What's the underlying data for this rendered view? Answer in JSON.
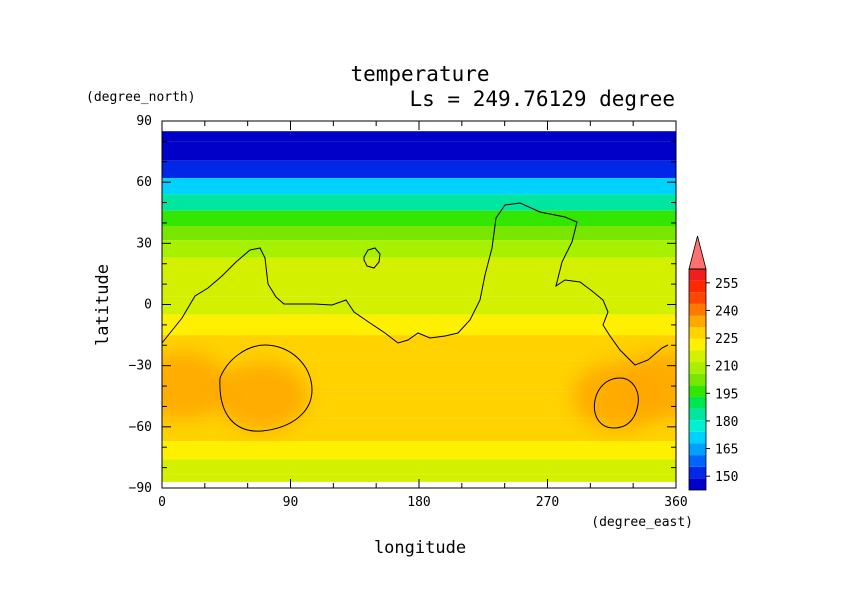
{
  "chart_data": {
    "type": "heatmap",
    "title": "temperature",
    "subtitle": "Ls = 249.76129 degree",
    "xlabel": "longitude",
    "ylabel": "latitude",
    "xunit": "(degree_east)",
    "yunit": "(degree_north)",
    "xlim": [
      0,
      360
    ],
    "ylim": [
      -90,
      90
    ],
    "data_lat_range": [
      -87,
      85
    ],
    "xticks": [
      0,
      90,
      180,
      270,
      360
    ],
    "yticks": [
      90,
      60,
      30,
      0,
      -30,
      -60,
      -90
    ],
    "colorbar": {
      "levels": [
        150,
        165,
        180,
        195,
        210,
        225,
        240,
        255
      ],
      "vmin": 142.5,
      "vmax": 262.5,
      "extend": "max",
      "colors": [
        "#0000c8",
        "#0028e6",
        "#0064ff",
        "#00a0ff",
        "#00d2ff",
        "#00f0d2",
        "#00e6a0",
        "#00e650",
        "#32e600",
        "#78e600",
        "#a6f000",
        "#d2f000",
        "#fff000",
        "#ffd200",
        "#ffa800",
        "#ff7800",
        "#ff4600",
        "#ff2800",
        "#f01e1e",
        "#ff7070"
      ]
    },
    "temperature_by_latitude": [
      {
        "lat": 85,
        "value": 143
      },
      {
        "lat": 75,
        "value": 145
      },
      {
        "lat": 66,
        "value": 155
      },
      {
        "lat": 58,
        "value": 170
      },
      {
        "lat": 50,
        "value": 182
      },
      {
        "lat": 42,
        "value": 195
      },
      {
        "lat": 35,
        "value": 204
      },
      {
        "lat": 28,
        "value": 210
      },
      {
        "lat": 18,
        "value": 213
      },
      {
        "lat": 8,
        "value": 216
      },
      {
        "lat": 0,
        "value": 218
      },
      {
        "lat": -10,
        "value": 222
      },
      {
        "lat": -20,
        "value": 226
      },
      {
        "lat": -35,
        "value": 229
      },
      {
        "lat": -50,
        "value": 230
      },
      {
        "lat": -62,
        "value": 229
      },
      {
        "lat": -72,
        "value": 224
      },
      {
        "lat": -80,
        "value": 216
      },
      {
        "lat": -87,
        "value": 212
      }
    ],
    "warm_regions": [
      {
        "lon": 15,
        "lat": -40,
        "value": 233
      },
      {
        "lon": 70,
        "lat": -45,
        "value": 231
      },
      {
        "lon": 320,
        "lat": -45,
        "value": 233
      },
      {
        "lon": 350,
        "lat": -40,
        "value": 236
      }
    ]
  }
}
